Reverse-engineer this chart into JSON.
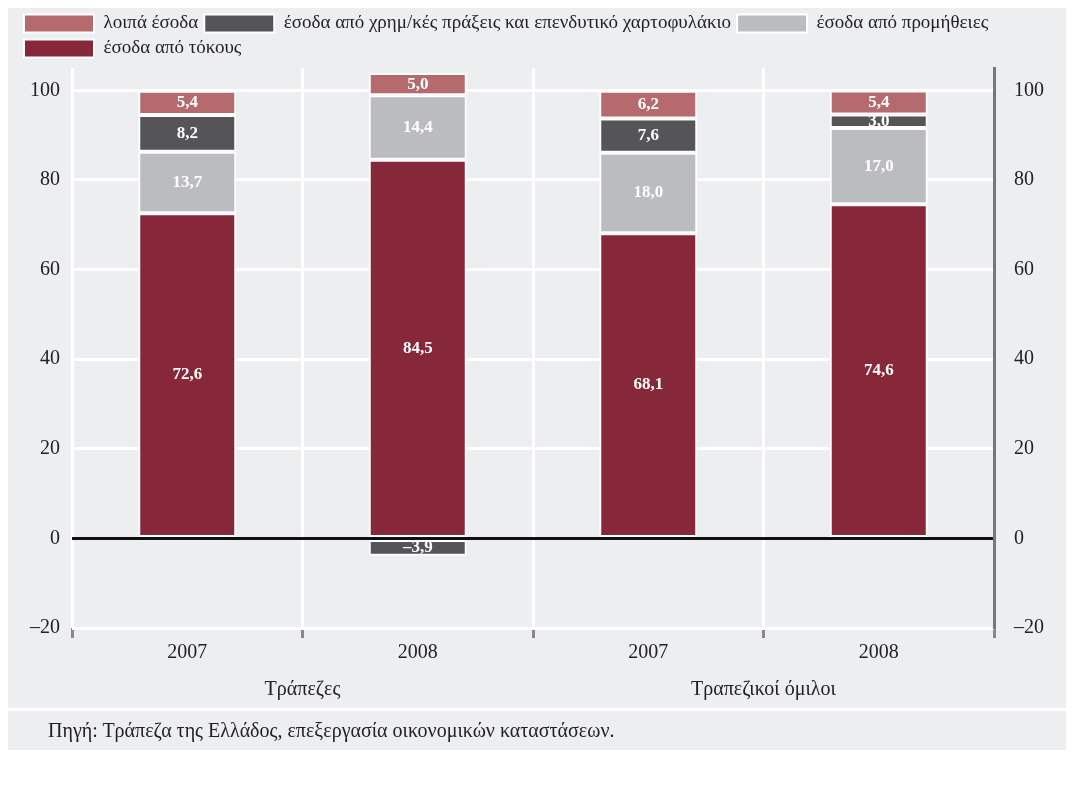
{
  "chart_data": {
    "type": "bar",
    "stacked": true,
    "categories": [
      "2007",
      "2008",
      "2007",
      "2008"
    ],
    "series": [
      {
        "name": "έσοδα από τόκους",
        "color": "#86283a",
        "values": [
          72.6,
          84.5,
          68.1,
          74.6
        ],
        "value_labels": [
          "72,6",
          "84,5",
          "68,1",
          "74,6"
        ]
      },
      {
        "name": "έσοδα από προμήθειες",
        "color": "#bbbcc0",
        "values": [
          13.7,
          14.4,
          18.0,
          17.0
        ],
        "value_labels": [
          "13,7",
          "14,4",
          "18,0",
          "17,0"
        ]
      },
      {
        "name": "έσοδα από χρημ/κές πράξεις και επενδυτικό χαρτοφυλάκιο",
        "color": "#555558",
        "values": [
          8.2,
          -3.9,
          7.6,
          3.0
        ],
        "value_labels": [
          "8,2",
          "–3,9",
          "7,6",
          "3,0"
        ]
      },
      {
        "name": "λοιπά έσοδα",
        "color": "#b56b6e",
        "values": [
          5.4,
          5.0,
          6.2,
          5.4
        ],
        "value_labels": [
          "5,4",
          "5,0",
          "6,2",
          "5,4"
        ]
      }
    ],
    "ylim": [
      -20,
      105
    ],
    "yticks": [
      {
        "value": -20,
        "label": "–20"
      },
      0,
      20,
      40,
      60,
      80,
      100
    ],
    "y2lim": [
      -20,
      105
    ],
    "y2ticks": [
      {
        "value": -20,
        "label": "–20"
      },
      0,
      20,
      40,
      60,
      80,
      100
    ],
    "grid": true,
    "legend": "top left",
    "annotations": [
      "Τράπεζες",
      "Τραπεζικοί όμιλοι",
      "Πηγή: Τράπεζα της Ελλάδος, επεξεργασία οικονομικών καταστάσεων."
    ]
  }
}
